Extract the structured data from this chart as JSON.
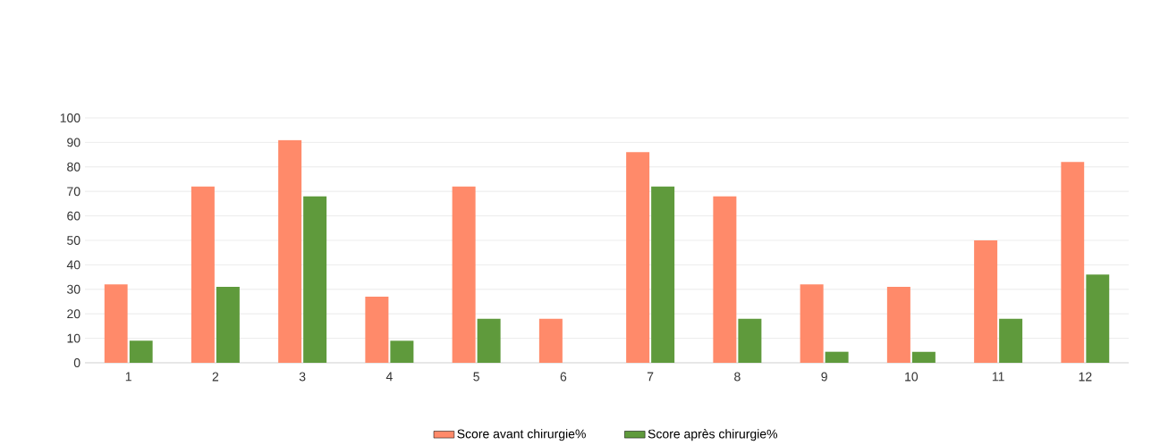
{
  "chart_data": {
    "type": "bar",
    "categories": [
      "1",
      "2",
      "3",
      "4",
      "5",
      "6",
      "7",
      "8",
      "9",
      "10",
      "11",
      "12"
    ],
    "series": [
      {
        "name": "Score  avant chirurgie%",
        "color": "#ff8a6a",
        "values": [
          32,
          72,
          91,
          27,
          72,
          18,
          86,
          68,
          32,
          31,
          50,
          82
        ]
      },
      {
        "name": "Score  après chirurgie%",
        "color": "#5f9a3c",
        "values": [
          9,
          31,
          68,
          9,
          18,
          0,
          72,
          18,
          4.5,
          4.5,
          18,
          36
        ]
      }
    ],
    "ylim": [
      0,
      100
    ],
    "yticks": [
      0,
      10,
      20,
      30,
      40,
      50,
      60,
      70,
      80,
      90,
      100
    ],
    "grid": "y",
    "legend": "bottom"
  }
}
